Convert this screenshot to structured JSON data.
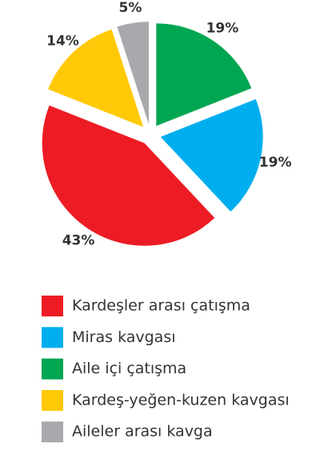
{
  "chart_data": {
    "type": "pie",
    "categories": [
      "Kardeşler arası çatışma",
      "Miras kavgası",
      "Aile içi çatışma",
      "Kardeş-yeğen-kuzen kavgası",
      "Aileler arası kavga"
    ],
    "values": [
      43,
      19,
      19,
      14,
      5
    ],
    "value_labels": [
      "43%",
      "19%",
      "19%",
      "14%",
      "5%"
    ],
    "colors": [
      "#ed1c24",
      "#00aeef",
      "#00a651",
      "#ffc907",
      "#a7a9ac"
    ],
    "legend": "bottom"
  }
}
